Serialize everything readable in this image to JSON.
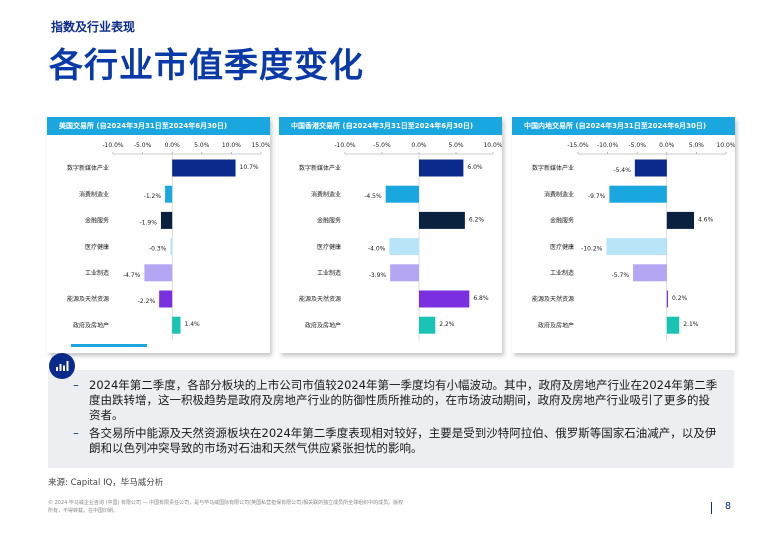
{
  "header": {
    "section": "指数及行业表现",
    "title": "各行业市值季度变化"
  },
  "chart_data": [
    {
      "type": "bar",
      "title": "美国交易所 (自2024年3月31日至2024年6月30日)",
      "categories": [
        "数字新媒体产业",
        "消费制造业",
        "金融服务",
        "医疗健康",
        "工业制造",
        "能源及天然资源",
        "政府及房地产"
      ],
      "values": [
        10.7,
        -1.2,
        -1.9,
        -0.3,
        -4.7,
        -2.2,
        1.4
      ],
      "labels": [
        "10.7%",
        "-1.2%",
        "-1.9%",
        "-0.3%",
        "-4.7%",
        "-2.2%",
        "1.4%"
      ],
      "ticks": [
        -10,
        -5,
        0,
        5,
        10,
        15
      ],
      "tick_labels": [
        "-10.0%",
        "-5.0%",
        "0.0%",
        "5.0%",
        "10.0%",
        "15.0%"
      ],
      "xlim": [
        -10,
        15
      ],
      "colors": [
        "#0a2a8c",
        "#1aa7e0",
        "#0b2140",
        "#b8e4f7",
        "#b4a6f2",
        "#7a2fe0",
        "#19c4b4"
      ]
    },
    {
      "type": "bar",
      "title": "中国香港交易所 (自2024年3月31日至2024年6月30日)",
      "categories": [
        "数字新媒体产业",
        "消费制造业",
        "金融服务",
        "医疗健康",
        "工业制造",
        "能源及天然资源",
        "政府及房地产"
      ],
      "values": [
        6.0,
        -4.5,
        6.2,
        -4.0,
        -3.9,
        6.8,
        2.2
      ],
      "labels": [
        "6.0%",
        "-4.5%",
        "6.2%",
        "-4.0%",
        "-3.9%",
        "6.8%",
        "2.2%"
      ],
      "ticks": [
        -10,
        -5,
        0,
        5,
        10
      ],
      "tick_labels": [
        "-10.0%",
        "-5.0%",
        "0.0%",
        "5.0%",
        "10.0%"
      ],
      "xlim": [
        -10,
        10
      ],
      "colors": [
        "#0a2a8c",
        "#1aa7e0",
        "#0b2140",
        "#b8e4f7",
        "#b4a6f2",
        "#7a2fe0",
        "#19c4b4"
      ]
    },
    {
      "type": "bar",
      "title": "中国内地交易所 (自2024年3月31日至2024年6月30日)",
      "categories": [
        "数字新媒体产业",
        "消费制造业",
        "金融服务",
        "医疗健康",
        "工业制造",
        "能源及天然资源",
        "政府及房地产"
      ],
      "values": [
        -5.4,
        -9.7,
        4.6,
        -10.2,
        -5.7,
        0.2,
        2.1
      ],
      "labels": [
        "-5.4%",
        "-9.7%",
        "4.6%",
        "-10.2%",
        "-5.7%",
        "0.2%",
        "2.1%"
      ],
      "ticks": [
        -15,
        -10,
        -5,
        0,
        5,
        10
      ],
      "tick_labels": [
        "-15.0%",
        "-10.0%",
        "-5.0%",
        "0.0%",
        "5.0%",
        "10.0%"
      ],
      "xlim": [
        -15,
        10
      ],
      "colors": [
        "#0a2a8c",
        "#1aa7e0",
        "#0b2140",
        "#b8e4f7",
        "#b4a6f2",
        "#7a2fe0",
        "#19c4b4"
      ]
    }
  ],
  "notes": [
    "2024年第二季度，各部分板块的上市公司市值较2024年第一季度均有小幅波动。其中，政府及房地产行业在2024年第二季度由跌转增，这一积极趋势是政府及房地产行业的防御性质所推动的，在市场波动期间，政府及房地产行业吸引了更多的投资者。",
    "各交易所中能源及天然资源板块在2024年第二季度表现相对较好，主要是受到沙特阿拉伯、俄罗斯等国家石油减产，以及伊朗和以色列冲突导致的市场对石油和天然气供应紧张担忧的影响。"
  ],
  "notes_icon": "bar-chart-icon",
  "footer": {
    "source": "来源: Capital IQ，毕马威分析",
    "disclaimer": "© 2024 毕马威企业咨询 (中国) 有限公司 — 中国有限责任公司，是与毕马威国际有限公司(英国私营担保有限公司)相关联的独立成员所全球组织中的成员。版权所有，不得转载。在中国印刷。",
    "page": "8"
  }
}
